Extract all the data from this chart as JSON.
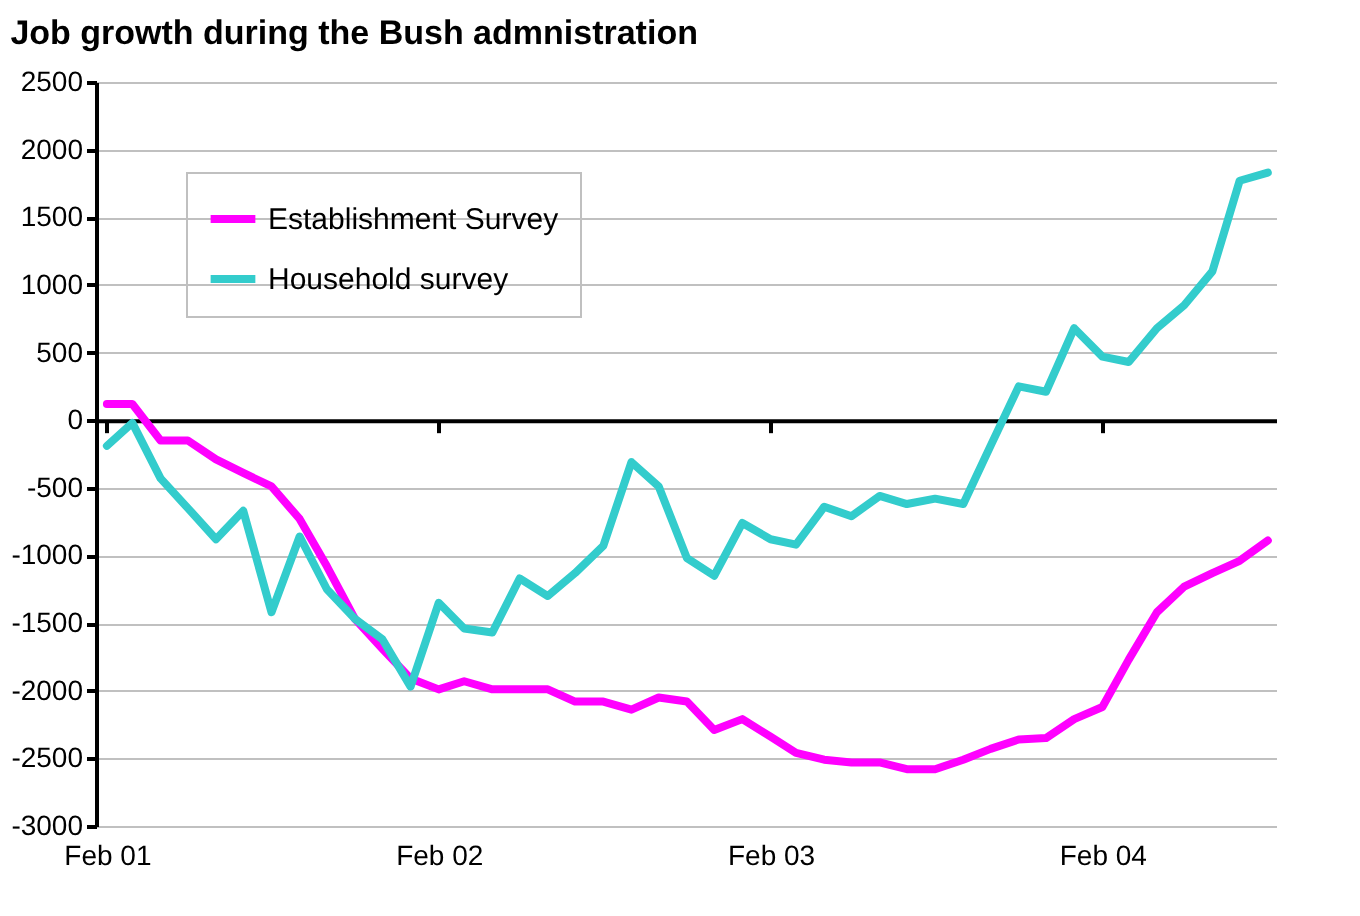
{
  "chart_data": {
    "type": "line",
    "title": "Job growth during the Bush admnistration",
    "x": [
      "2001-02",
      "2001-03",
      "2001-04",
      "2001-05",
      "2001-06",
      "2001-07",
      "2001-08",
      "2001-09",
      "2001-10",
      "2001-11",
      "2001-12",
      "2002-01",
      "2002-02",
      "2002-03",
      "2002-04",
      "2002-05",
      "2002-06",
      "2002-07",
      "2002-08",
      "2002-09",
      "2002-10",
      "2002-11",
      "2002-12",
      "2003-01",
      "2003-02",
      "2003-03",
      "2003-04",
      "2003-05",
      "2003-06",
      "2003-07",
      "2003-08",
      "2003-09",
      "2003-10",
      "2003-11",
      "2003-12",
      "2004-01",
      "2004-02",
      "2004-03",
      "2004-04",
      "2004-05",
      "2004-06",
      "2004-07",
      "2004-08"
    ],
    "series": [
      {
        "name": "Establishment Survey",
        "color": "#ff00ff",
        "values": [
          120,
          120,
          -150,
          -150,
          -290,
          -390,
          -490,
          -730,
          -1080,
          -1470,
          -1690,
          -1910,
          -1990,
          -1930,
          -1990,
          -1990,
          -1990,
          -2080,
          -2080,
          -2140,
          -2050,
          -2080,
          -2290,
          -2210,
          -2340,
          -2460,
          -2510,
          -2530,
          -2530,
          -2580,
          -2580,
          -2510,
          -2430,
          -2360,
          -2350,
          -2210,
          -2120,
          -1770,
          -1420,
          -1230,
          -1130,
          -1040,
          -890
        ]
      },
      {
        "name": "Household survey",
        "color": "#33cccc",
        "values": [
          -190,
          -20,
          -430,
          -650,
          -880,
          -670,
          -1420,
          -860,
          -1250,
          -1470,
          -1620,
          -1970,
          -1350,
          -1540,
          -1570,
          -1170,
          -1300,
          -1130,
          -930,
          -310,
          -490,
          -1020,
          -1150,
          -760,
          -880,
          -920,
          -640,
          -710,
          -560,
          -620,
          -580,
          -620,
          -190,
          250,
          210,
          680,
          470,
          430,
          680,
          850,
          1100,
          1770,
          1830
        ]
      }
    ],
    "xlim": [
      "2001-01-20",
      "2004-08-10"
    ],
    "xticks": [
      {
        "value": "2001-02",
        "label": "Feb 01"
      },
      {
        "value": "2002-02",
        "label": "Feb 02"
      },
      {
        "value": "2003-02",
        "label": "Feb 03"
      },
      {
        "value": "2004-02",
        "label": "Feb 04"
      }
    ],
    "ylim": [
      -3000,
      2500
    ],
    "yticks": [
      -3000,
      -2500,
      -2000,
      -1500,
      -1000,
      -500,
      0,
      500,
      1000,
      1500,
      2000,
      2500
    ],
    "grid": "y",
    "legend": "top left",
    "line_style": "solid",
    "marker": "none"
  }
}
